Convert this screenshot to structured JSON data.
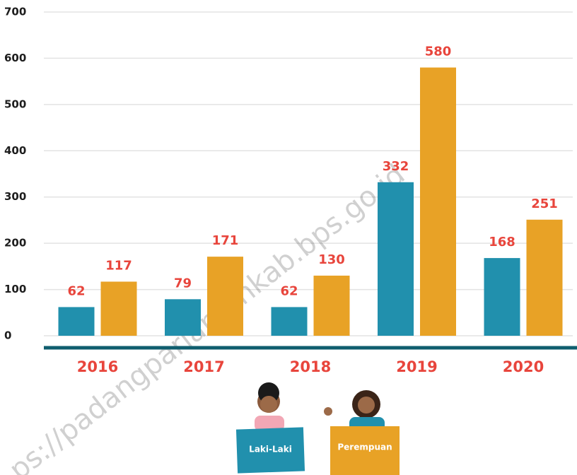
{
  "chart_data": {
    "type": "bar",
    "categories": [
      "2016",
      "2017",
      "2018",
      "2019",
      "2020"
    ],
    "series": [
      {
        "name": "Laki-Laki",
        "color": "#2190ad",
        "values": [
          62,
          79,
          62,
          332,
          168
        ]
      },
      {
        "name": "Perempuan",
        "color": "#e8a226",
        "values": [
          117,
          171,
          130,
          580,
          251
        ]
      }
    ],
    "ylim": [
      0,
      700
    ],
    "yticks": [
      0,
      100,
      200,
      300,
      400,
      500,
      600,
      700
    ],
    "grid": true,
    "watermark": "ps://padangpariamankab.bps.go.id"
  }
}
